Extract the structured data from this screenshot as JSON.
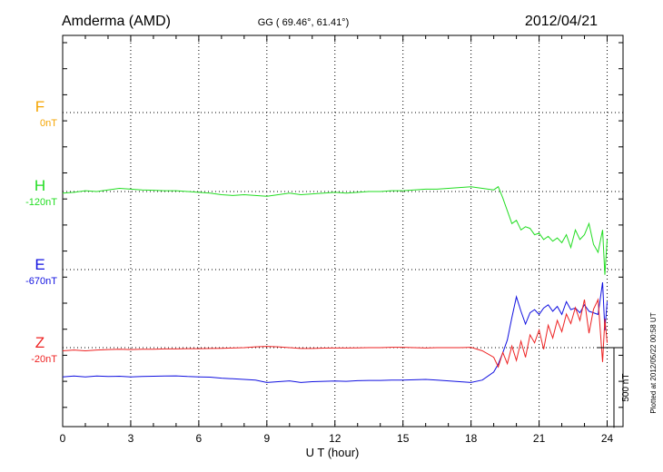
{
  "header": {
    "station": "Amderma (AMD)",
    "coords": "GG ( 69.46°,  61.41°)",
    "date": "2012/04/21"
  },
  "footer": {
    "plotted": "Plotted at 2012/05/22 00:58 UT"
  },
  "chart_data": {
    "type": "line",
    "xlabel": "U T (hour)",
    "xlim": [
      0,
      24.7
    ],
    "xticks": [
      "0",
      "3",
      "6",
      "9",
      "12",
      "15",
      "18",
      "21",
      "24"
    ],
    "scale_bar": "500 nT",
    "grid": true,
    "series": [
      {
        "name": "F",
        "baseline": "0nT",
        "color": "#f5a400",
        "x": [],
        "y": []
      },
      {
        "name": "H",
        "baseline": "-120nT",
        "color": "#22dd22",
        "x": [
          0,
          0.5,
          1,
          1.5,
          2,
          2.5,
          3,
          3.5,
          4,
          4.5,
          5,
          5.5,
          6,
          6.5,
          7,
          7.5,
          8,
          8.5,
          9,
          9.5,
          10,
          10.5,
          11,
          11.5,
          12,
          12.5,
          13,
          13.5,
          14,
          14.5,
          15,
          15.5,
          16,
          16.5,
          17,
          17.5,
          18,
          18.5,
          19,
          19.2,
          19.4,
          19.6,
          19.8,
          20,
          20.2,
          20.4,
          20.6,
          20.8,
          21,
          21.2,
          21.4,
          21.6,
          21.8,
          22,
          22.2,
          22.4,
          22.6,
          22.8,
          23,
          23.2,
          23.4,
          23.6,
          23.8,
          23.9,
          24
        ],
        "y": [
          -10,
          -5,
          5,
          0,
          10,
          20,
          15,
          10,
          8,
          5,
          5,
          0,
          -5,
          -10,
          -20,
          -25,
          -20,
          -25,
          -30,
          -20,
          -10,
          -20,
          -15,
          -10,
          -5,
          -10,
          -5,
          0,
          0,
          5,
          5,
          10,
          15,
          15,
          20,
          25,
          30,
          20,
          10,
          30,
          -40,
          -120,
          -200,
          -180,
          -240,
          -220,
          -230,
          -270,
          -260,
          -300,
          -280,
          -310,
          -290,
          -320,
          -270,
          -350,
          -240,
          -300,
          -270,
          -200,
          -330,
          -380,
          -240,
          -520,
          -300
        ]
      },
      {
        "name": "E",
        "baseline": "-670nT",
        "color": "#1010e0",
        "x": [
          0,
          0.5,
          1,
          1.5,
          2,
          2.5,
          3,
          3.5,
          4,
          4.5,
          5,
          5.5,
          6,
          6.5,
          7,
          7.5,
          8,
          8.5,
          9,
          9.5,
          10,
          10.5,
          11,
          11.5,
          12,
          12.5,
          13,
          13.5,
          14,
          14.5,
          15,
          15.5,
          16,
          16.5,
          17,
          17.5,
          18,
          18.5,
          19,
          19.2,
          19.4,
          19.6,
          19.8,
          20,
          20.2,
          20.4,
          20.6,
          20.8,
          21,
          21.2,
          21.4,
          21.6,
          21.8,
          22,
          22.2,
          22.4,
          22.6,
          22.8,
          23,
          23.2,
          23.4,
          23.6,
          23.8,
          23.9,
          24
        ],
        "y": [
          -670,
          -665,
          -670,
          -665,
          -668,
          -666,
          -670,
          -668,
          -666,
          -665,
          -664,
          -668,
          -670,
          -672,
          -678,
          -682,
          -686,
          -690,
          -705,
          -700,
          -695,
          -705,
          -700,
          -698,
          -696,
          -698,
          -694,
          -692,
          -692,
          -690,
          -690,
          -688,
          -686,
          -690,
          -695,
          -700,
          -705,
          -690,
          -640,
          -590,
          -520,
          -440,
          -300,
          -170,
          -260,
          -340,
          -270,
          -250,
          -280,
          -240,
          -220,
          -260,
          -230,
          -280,
          -200,
          -250,
          -240,
          -270,
          -220,
          -260,
          -270,
          -280,
          -80,
          -380,
          -200
        ]
      },
      {
        "name": "Z",
        "baseline": "-20nT",
        "color": "#ee2222",
        "x": [
          0,
          0.5,
          1,
          1.5,
          2,
          2.5,
          3,
          3.5,
          4,
          4.5,
          5,
          5.5,
          6,
          6.5,
          7,
          7.5,
          8,
          8.5,
          9,
          9.5,
          10,
          10.5,
          11,
          11.5,
          12,
          12.5,
          13,
          13.5,
          14,
          14.5,
          15,
          15.5,
          16,
          16.5,
          17,
          17.5,
          18,
          18.5,
          19,
          19.2,
          19.4,
          19.6,
          19.8,
          20,
          20.2,
          20.4,
          20.6,
          20.8,
          21,
          21.2,
          21.4,
          21.6,
          21.8,
          22,
          22.2,
          22.4,
          22.6,
          22.8,
          23,
          23.2,
          23.4,
          23.6,
          23.8,
          23.9,
          24
        ],
        "y": [
          -20,
          -15,
          -20,
          -15,
          -12,
          -10,
          -12,
          -10,
          -10,
          -8,
          -8,
          -6,
          -6,
          -5,
          -4,
          -2,
          0,
          5,
          8,
          5,
          0,
          -5,
          -5,
          -3,
          -2,
          -2,
          -1,
          0,
          0,
          2,
          2,
          0,
          -2,
          0,
          0,
          0,
          2,
          -20,
          -60,
          -120,
          -30,
          -100,
          10,
          -80,
          40,
          -60,
          80,
          30,
          110,
          -10,
          140,
          60,
          170,
          100,
          210,
          150,
          250,
          170,
          300,
          90,
          240,
          300,
          -90,
          180,
          30
        ]
      }
    ]
  }
}
